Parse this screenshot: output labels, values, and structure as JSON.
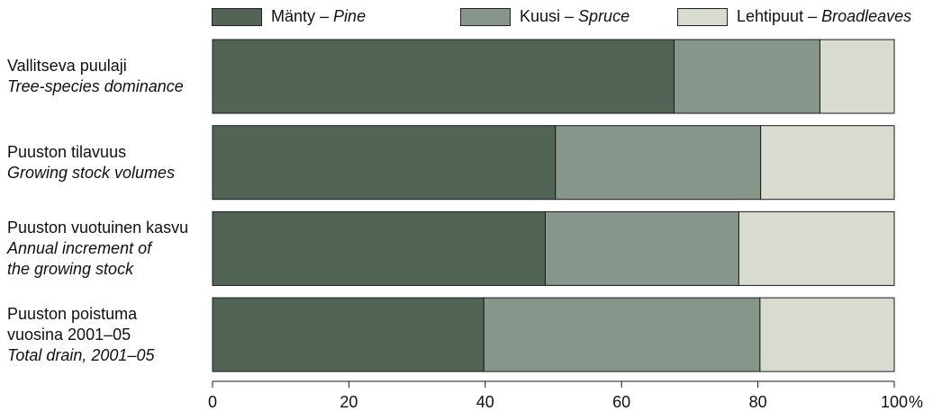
{
  "chart_data": {
    "type": "bar",
    "orientation": "horizontal",
    "stacked": true,
    "categories": [
      {
        "fi_lines": [
          "Vallitseva puulaji"
        ],
        "en_lines": [
          "Tree-species dominance"
        ]
      },
      {
        "fi_lines": [
          "Puuston tilavuus"
        ],
        "en_lines": [
          "Growing stock volumes"
        ]
      },
      {
        "fi_lines": [
          "Puuston vuotuinen kasvu"
        ],
        "en_lines": [
          "Annual increment of",
          "the growing stock"
        ]
      },
      {
        "fi_lines": [
          "Puuston poistuma",
          "vuosina 2001–05"
        ],
        "en_lines": [
          "Total drain, 2001–05"
        ]
      }
    ],
    "series": [
      {
        "name_fi": "Mänty",
        "name_en": "Pine",
        "color": "#526455",
        "values": [
          67.7,
          50.3,
          48.8,
          39.8
        ]
      },
      {
        "name_fi": "Kuusi",
        "name_en": "Spruce",
        "color": "#87968a",
        "values": [
          21.4,
          30.1,
          28.4,
          40.5
        ]
      },
      {
        "name_fi": "Lehtipuut",
        "name_en": "Broadleaves",
        "color": "#d8dbd0",
        "values": [
          10.9,
          19.6,
          22.8,
          19.7
        ]
      }
    ],
    "xlim": [
      0,
      100
    ],
    "xticks": [
      0,
      20,
      40,
      60,
      80,
      100
    ],
    "x_unit": "%",
    "legend_separator": "–",
    "legend_position": "top",
    "grid": false
  }
}
